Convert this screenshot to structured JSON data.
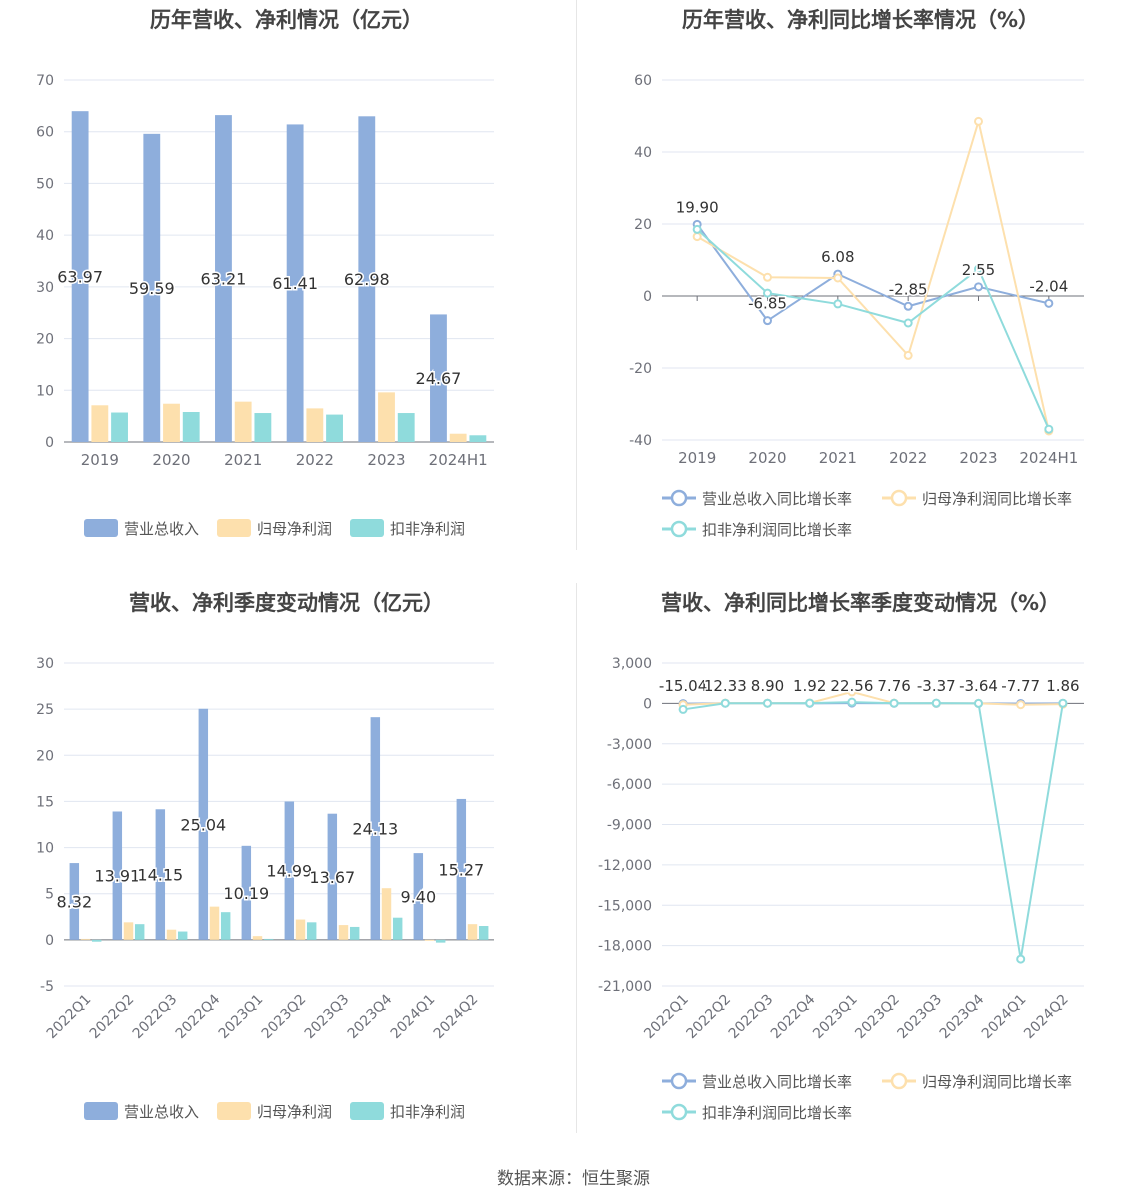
{
  "colors": {
    "revenue": "#8eaedc",
    "parent_profit": "#fde0ad",
    "deducted_profit": "#8fdbdc",
    "axis": "#6e7079",
    "grid": "#e0e6f1",
    "title": "#444444"
  },
  "source": "数据来源：恒生聚源",
  "chart_data": [
    {
      "type": "bar",
      "title": "历年营收、净利情况（亿元）",
      "categories": [
        "2019",
        "2020",
        "2021",
        "2022",
        "2023",
        "2024H1"
      ],
      "ylim": [
        0,
        70
      ],
      "yticks": [
        0,
        10,
        20,
        30,
        40,
        50,
        60,
        70
      ],
      "legend_position": "bottom",
      "series": [
        {
          "name": "营业总收入",
          "color": "#8eaedc",
          "values": [
            63.97,
            59.59,
            63.21,
            61.41,
            62.98,
            24.67
          ],
          "labels": [
            "63.97",
            "59.59",
            "63.21",
            "61.41",
            "62.98",
            "24.67"
          ]
        },
        {
          "name": "归母净利润",
          "color": "#fde0ad",
          "values": [
            7.1,
            7.4,
            7.8,
            6.5,
            9.6,
            1.6
          ]
        },
        {
          "name": "扣非净利润",
          "color": "#8fdbdc",
          "values": [
            5.7,
            5.8,
            5.6,
            5.3,
            5.6,
            1.3
          ]
        }
      ]
    },
    {
      "type": "line",
      "title": "历年营收、净利同比增长率情况（%）",
      "categories": [
        "2019",
        "2020",
        "2021",
        "2022",
        "2023",
        "2024H1"
      ],
      "ylim": [
        -40,
        60
      ],
      "yticks": [
        -40,
        -20,
        0,
        20,
        40,
        60
      ],
      "legend_position": "bottom",
      "series": [
        {
          "name": "营业总收入同比增长率",
          "color": "#8eaedc",
          "values": [
            19.9,
            -6.85,
            6.08,
            -2.85,
            2.55,
            -2.04
          ],
          "labels": [
            "19.90",
            "-6.85",
            "6.08",
            "-2.85",
            "2.55",
            "-2.04"
          ]
        },
        {
          "name": "归母净利润同比增长率",
          "color": "#fde0ad",
          "values": [
            16.5,
            5.2,
            5.0,
            -16.5,
            48.5,
            -37.5
          ]
        },
        {
          "name": "扣非净利润同比增长率",
          "color": "#8fdbdc",
          "values": [
            18.5,
            0.8,
            -2.2,
            -7.5,
            7.5,
            -37.0
          ]
        }
      ]
    },
    {
      "type": "bar",
      "title": "营收、净利季度变动情况（亿元）",
      "categories": [
        "2022Q1",
        "2022Q2",
        "2022Q3",
        "2022Q4",
        "2023Q1",
        "2023Q2",
        "2023Q3",
        "2023Q4",
        "2024Q1",
        "2024Q2"
      ],
      "ylim": [
        -5,
        30
      ],
      "yticks": [
        -5,
        0,
        5,
        10,
        15,
        20,
        25,
        30
      ],
      "legend_position": "bottom",
      "series": [
        {
          "name": "营业总收入",
          "color": "#8eaedc",
          "values": [
            8.32,
            13.91,
            14.15,
            25.04,
            10.19,
            14.99,
            13.67,
            24.13,
            9.4,
            15.27
          ],
          "labels": [
            "8.32",
            "13.91",
            "14.15",
            "25.04",
            "10.19",
            "14.99",
            "13.67",
            "24.13",
            "9.40",
            "15.27"
          ]
        },
        {
          "name": "归母净利润",
          "color": "#fde0ad",
          "values": [
            0.1,
            1.9,
            1.1,
            3.6,
            0.4,
            2.2,
            1.6,
            5.6,
            -0.1,
            1.7
          ]
        },
        {
          "name": "扣非净利润",
          "color": "#8fdbdc",
          "values": [
            -0.2,
            1.7,
            0.9,
            3.0,
            0.1,
            1.9,
            1.4,
            2.4,
            -0.3,
            1.5
          ]
        }
      ]
    },
    {
      "type": "line",
      "title": "营收、净利同比增长率季度变动情况（%）",
      "categories": [
        "2022Q1",
        "2022Q2",
        "2022Q3",
        "2022Q4",
        "2023Q1",
        "2023Q2",
        "2023Q3",
        "2023Q4",
        "2024Q1",
        "2024Q2"
      ],
      "ylim": [
        -21000,
        3000
      ],
      "yticks": [
        -21000,
        -18000,
        -15000,
        -12000,
        -9000,
        -6000,
        -3000,
        0,
        3000
      ],
      "legend_position": "bottom",
      "series": [
        {
          "name": "营业总收入同比增长率",
          "color": "#8eaedc",
          "values": [
            -15.04,
            12.33,
            8.9,
            1.92,
            22.56,
            7.76,
            -3.37,
            -3.64,
            -7.77,
            1.86
          ],
          "labels": [
            "-15.04",
            "12.33",
            "8.90",
            "1.92",
            "22.56",
            "7.76",
            "-3.37",
            "-3.64",
            "-7.77",
            "1.86"
          ]
        },
        {
          "name": "归母净利润同比增长率",
          "color": "#fde0ad",
          "values": [
            -100,
            20,
            10,
            30,
            850,
            20,
            10,
            0,
            -100,
            -60
          ]
        },
        {
          "name": "扣非净利润同比增长率",
          "color": "#8fdbdc",
          "values": [
            -450,
            10,
            10,
            20,
            90,
            10,
            20,
            0,
            -19000,
            10
          ]
        }
      ]
    }
  ]
}
